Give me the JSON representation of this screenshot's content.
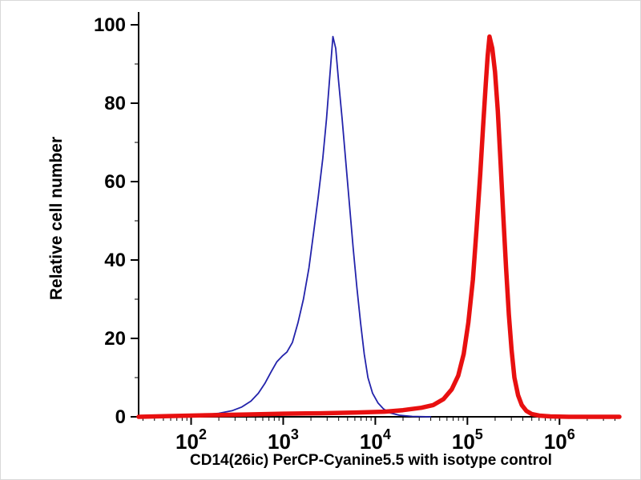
{
  "chart_data": {
    "type": "line",
    "title": "",
    "xlabel": "CD14(26ic) PerCP-Cyanine5.5 with isotype control",
    "ylabel": "Relative cell number",
    "x_scale": "log10",
    "xlim_log10": [
      1.43,
      6.65
    ],
    "ylim": [
      0,
      100
    ],
    "x_tick_base": "10",
    "x_major_ticks_exp": [
      2,
      3,
      4,
      5,
      6
    ],
    "y_ticks": [
      0,
      20,
      40,
      60,
      80,
      100
    ],
    "y_minor_step": 10,
    "grid": false,
    "legend": "none",
    "background": "#ffffff",
    "axis_color": "#000000",
    "series": [
      {
        "name": "isotype control",
        "color": "#2323ab",
        "stroke_width": 1.8,
        "points_log10x_y": [
          [
            1.43,
            0
          ],
          [
            1.8,
            0.2
          ],
          [
            2.1,
            0.4
          ],
          [
            2.3,
            0.9
          ],
          [
            2.45,
            1.6
          ],
          [
            2.55,
            2.5
          ],
          [
            2.65,
            4
          ],
          [
            2.73,
            6
          ],
          [
            2.8,
            8.5
          ],
          [
            2.87,
            11.5
          ],
          [
            2.93,
            14
          ],
          [
            2.99,
            15.5
          ],
          [
            3.04,
            16.5
          ],
          [
            3.1,
            19
          ],
          [
            3.16,
            24
          ],
          [
            3.22,
            30
          ],
          [
            3.28,
            38
          ],
          [
            3.33,
            47
          ],
          [
            3.38,
            56
          ],
          [
            3.43,
            66
          ],
          [
            3.47,
            76
          ],
          [
            3.5,
            85
          ],
          [
            3.52,
            91
          ],
          [
            3.54,
            97
          ],
          [
            3.57,
            94
          ],
          [
            3.6,
            86
          ],
          [
            3.64,
            76
          ],
          [
            3.68,
            65
          ],
          [
            3.72,
            54
          ],
          [
            3.76,
            43
          ],
          [
            3.8,
            33
          ],
          [
            3.84,
            24
          ],
          [
            3.88,
            16
          ],
          [
            3.92,
            10
          ],
          [
            3.97,
            6
          ],
          [
            4.03,
            3.5
          ],
          [
            4.09,
            2
          ],
          [
            4.16,
            1
          ],
          [
            4.26,
            0.4
          ],
          [
            4.4,
            0.1
          ],
          [
            4.6,
            0
          ]
        ]
      },
      {
        "name": "CD14(26ic) PerCP-Cyanine5.5",
        "color": "#e81010",
        "stroke_width": 5.5,
        "points_log10x_y": [
          [
            1.43,
            0
          ],
          [
            1.8,
            0.2
          ],
          [
            2.2,
            0.4
          ],
          [
            2.6,
            0.6
          ],
          [
            3.0,
            0.8
          ],
          [
            3.4,
            0.9
          ],
          [
            3.8,
            1.1
          ],
          [
            4.1,
            1.3
          ],
          [
            4.3,
            1.7
          ],
          [
            4.5,
            2.3
          ],
          [
            4.63,
            3
          ],
          [
            4.74,
            4.5
          ],
          [
            4.83,
            7
          ],
          [
            4.9,
            10.5
          ],
          [
            4.96,
            16
          ],
          [
            5.01,
            24
          ],
          [
            5.06,
            35
          ],
          [
            5.1,
            48
          ],
          [
            5.14,
            62
          ],
          [
            5.17,
            74
          ],
          [
            5.2,
            85
          ],
          [
            5.22,
            92
          ],
          [
            5.24,
            97
          ],
          [
            5.27,
            94
          ],
          [
            5.3,
            88
          ],
          [
            5.33,
            78
          ],
          [
            5.36,
            65
          ],
          [
            5.39,
            51
          ],
          [
            5.42,
            38
          ],
          [
            5.45,
            26
          ],
          [
            5.48,
            17
          ],
          [
            5.51,
            10
          ],
          [
            5.55,
            5.5
          ],
          [
            5.59,
            3
          ],
          [
            5.64,
            1.5
          ],
          [
            5.7,
            0.7
          ],
          [
            5.78,
            0.3
          ],
          [
            5.9,
            0.1
          ],
          [
            6.1,
            0
          ],
          [
            6.65,
            0
          ]
        ]
      }
    ]
  }
}
